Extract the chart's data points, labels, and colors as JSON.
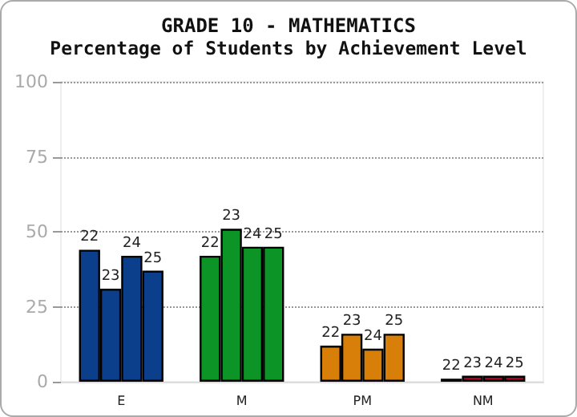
{
  "chart_data": {
    "type": "bar",
    "title": "GRADE 10 - MATHEMATICS",
    "subtitle": "Percentage of Students by Achievement Level",
    "categories": [
      "E",
      "M",
      "PM",
      "NM"
    ],
    "series": [
      {
        "name": "22",
        "colors": [
          "#0b3f8c",
          "#0d9426",
          "#d87f0a",
          "#a8001e"
        ],
        "values": [
          44,
          42,
          12,
          1
        ]
      },
      {
        "name": "23",
        "colors": [
          "#0b3f8c",
          "#0d9426",
          "#d87f0a",
          "#a8001e"
        ],
        "values": [
          31,
          51,
          16,
          2
        ]
      },
      {
        "name": "24",
        "colors": [
          "#0b3f8c",
          "#0d9426",
          "#d87f0a",
          "#a8001e"
        ],
        "values": [
          42,
          45,
          11,
          2
        ]
      },
      {
        "name": "25",
        "colors": [
          "#0b3f8c",
          "#0d9426",
          "#d87f0a",
          "#a8001e"
        ],
        "values": [
          37,
          45,
          16,
          2
        ]
      }
    ],
    "ylim": [
      0,
      100
    ],
    "yticks": [
      0,
      25,
      50,
      75,
      100
    ],
    "grid": "y",
    "legend": false
  }
}
